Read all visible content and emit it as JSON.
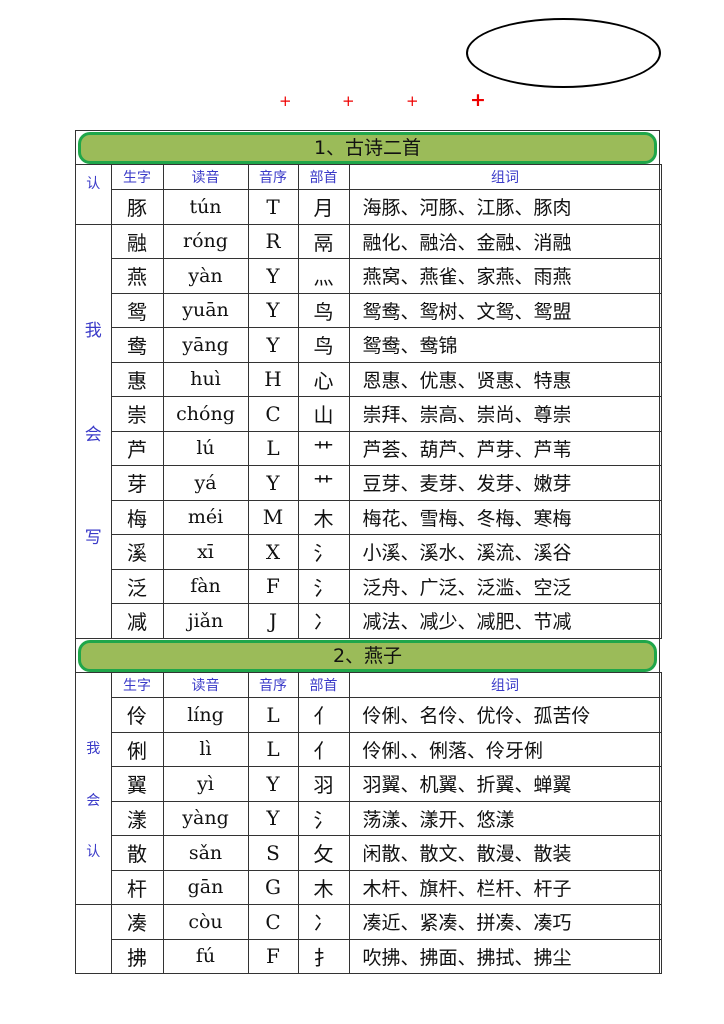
{
  "plus_signs": [
    "+",
    "+",
    "+",
    "+"
  ],
  "headers": [
    "生字",
    "读音",
    "音序",
    "部首",
    "组词"
  ],
  "sections": [
    {
      "title": "1、古诗二首",
      "groups": [
        {
          "labels": [
            "认"
          ],
          "rows": [
            [
              "豚",
              "tún",
              "T",
              "月",
              "海豚、河豚、江豚、豚肉"
            ]
          ]
        },
        {
          "labels": [
            "我",
            "会",
            "写"
          ],
          "rows": [
            [
              "融",
              "róng",
              "R",
              "鬲",
              "融化、融洽、金融、消融"
            ],
            [
              "燕",
              "yàn",
              "Y",
              "灬",
              "燕窝、燕雀、家燕、雨燕"
            ],
            [
              "鸳",
              "yuān",
              "Y",
              "鸟",
              "鸳鸯、鸳树、文鸳、鸳盟"
            ],
            [
              "鸯",
              "yāng",
              "Y",
              "鸟",
              "鸳鸯、鸯锦"
            ],
            [
              "惠",
              "huì",
              "H",
              "心",
              "恩惠、优惠、贤惠、特惠"
            ],
            [
              "崇",
              "chóng",
              "C",
              "山",
              "崇拜、崇高、崇尚、尊崇"
            ],
            [
              "芦",
              "lú",
              "L",
              "艹",
              "芦荟、葫芦、芦芽、芦苇"
            ],
            [
              "芽",
              "yá",
              "Y",
              "艹",
              "豆芽、麦芽、发芽、嫩芽"
            ],
            [
              "梅",
              "méi",
              "M",
              "木",
              "梅花、雪梅、冬梅、寒梅"
            ],
            [
              "溪",
              "xī",
              "X",
              "氵",
              "小溪、溪水、溪流、溪谷"
            ],
            [
              "泛",
              "fàn",
              "F",
              "氵",
              "泛舟、广泛、泛滥、空泛"
            ],
            [
              "减",
              "jiǎn",
              "J",
              "冫",
              "减法、减少、减肥、节减"
            ]
          ]
        }
      ]
    },
    {
      "title": "2、燕子",
      "groups": [
        {
          "labels": [
            "我",
            "会",
            "认"
          ],
          "rows": [
            [
              "伶",
              "líng",
              "L",
              "亻",
              "伶俐、名伶、优伶、孤苦伶"
            ],
            [
              "俐",
              "lì",
              "L",
              "亻",
              "伶俐、、俐落、伶牙俐"
            ],
            [
              "翼",
              "yì",
              "Y",
              "羽",
              "羽翼、机翼、折翼、蝉翼"
            ],
            [
              "漾",
              "yàng",
              "Y",
              "氵",
              "荡漾、漾开、悠漾"
            ],
            [
              "散",
              "sǎn",
              "S",
              "攵",
              "闲散、散文、散漫、散装"
            ],
            [
              "杆",
              "gān",
              "G",
              "木",
              "木杆、旗杆、栏杆、杆子"
            ]
          ]
        },
        {
          "labels": [],
          "rows": [
            [
              "凑",
              "còu",
              "C",
              "冫",
              "凑近、紧凑、拼凑、凑巧"
            ],
            [
              "拂",
              "fú",
              "F",
              "扌",
              "吹拂、拂面、拂拭、拂尘"
            ]
          ]
        }
      ]
    }
  ]
}
